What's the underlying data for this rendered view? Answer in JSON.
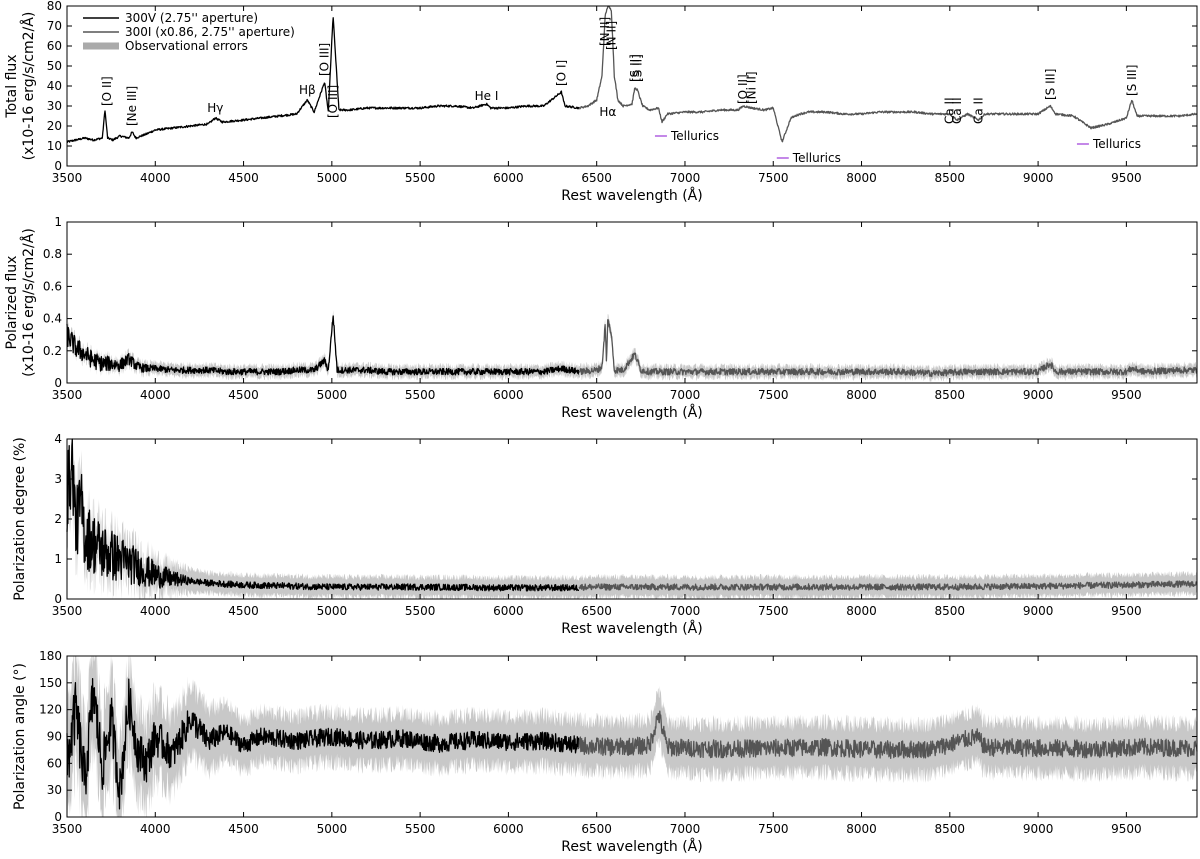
{
  "chart_data": [
    {
      "type": "line",
      "id": "total",
      "ylabel_line1": "Total flux",
      "ylabel_line2": "(x10-16 erg/s/cm2/Å)",
      "xlabel": "Rest wavelength (Å)",
      "xlim": [
        3500,
        9900
      ],
      "ylim": [
        0,
        80
      ],
      "x_ticks": [
        3500,
        4000,
        4500,
        5000,
        5500,
        6000,
        6500,
        7000,
        7500,
        8000,
        8500,
        9000,
        9500
      ],
      "y_ticks": [
        0,
        10,
        20,
        30,
        40,
        50,
        60,
        70,
        80
      ],
      "legend": [
        {
          "label": "300V (2.75'' aperture)",
          "color": "#000000"
        },
        {
          "label": "300I (x0.86, 2.75'' aperture)",
          "color": "#555555"
        },
        {
          "label": "Observational errors",
          "color": "#aaaaaa"
        }
      ],
      "series": [
        {
          "name": "300V (2.75'' aperture)",
          "color": "#000000",
          "x": [
            3500,
            3550,
            3600,
            3650,
            3700,
            3715,
            3730,
            3760,
            3800,
            3850,
            3869,
            3890,
            3950,
            4000,
            4100,
            4200,
            4300,
            4340,
            4380,
            4500,
            4600,
            4700,
            4800,
            4861,
            4900,
            4959,
            4980,
            5007,
            5040,
            5100,
            5200,
            5300,
            5400,
            5500,
            5600,
            5700,
            5800,
            5876,
            5900,
            6000,
            6100,
            6200,
            6300,
            6320,
            6400
          ],
          "y": [
            12,
            13,
            14,
            13,
            14,
            28,
            14,
            13,
            15,
            14,
            17,
            14,
            16,
            18,
            19,
            20,
            21,
            24,
            22,
            23,
            24,
            25,
            26,
            33,
            27,
            42,
            27,
            75,
            28,
            28,
            29,
            29,
            29,
            29,
            30,
            30,
            29,
            31,
            29,
            29,
            30,
            30,
            37,
            30,
            29
          ]
        },
        {
          "name": "300I (x0.86, 2.75'' aperture)",
          "color": "#555555",
          "x": [
            6400,
            6450,
            6500,
            6530,
            6548,
            6563,
            6583,
            6600,
            6620,
            6650,
            6700,
            6716,
            6731,
            6760,
            6800,
            6850,
            6870,
            6900,
            7000,
            7100,
            7200,
            7300,
            7330,
            7380,
            7450,
            7500,
            7550,
            7600,
            7650,
            7700,
            7800,
            7900,
            8000,
            8100,
            8200,
            8300,
            8400,
            8500,
            8542,
            8600,
            8662,
            8700,
            8800,
            8900,
            9000,
            9069,
            9100,
            9200,
            9300,
            9400,
            9500,
            9531,
            9560,
            9600,
            9700,
            9800,
            9900
          ],
          "y": [
            29,
            30,
            33,
            45,
            75,
            80,
            78,
            45,
            33,
            30,
            31,
            39,
            38,
            30,
            28,
            29,
            22,
            26,
            27,
            27,
            28,
            28,
            30,
            29,
            28,
            29,
            12,
            24,
            26,
            27,
            27,
            26,
            26,
            27,
            27,
            27,
            26,
            26,
            23,
            26,
            23,
            26,
            26,
            26,
            26,
            30,
            26,
            25,
            19,
            21,
            24,
            33,
            25,
            25,
            25,
            25,
            26
          ]
        }
      ],
      "annotations": [
        {
          "text": "[O II]",
          "x": 3727,
          "y": 30,
          "rotate": -90,
          "color": "#000000"
        },
        {
          "text": "[Ne III]",
          "x": 3869,
          "y": 20,
          "rotate": -90,
          "color": "#000000"
        },
        {
          "text": "Hγ",
          "x": 4340,
          "y": 27,
          "rotate": 0,
          "color": "#000000"
        },
        {
          "text": "Hβ",
          "x": 4861,
          "y": 36,
          "rotate": 0,
          "color": "#000000"
        },
        {
          "text": "[O III]",
          "x": 4959,
          "y": 45,
          "rotate": -90,
          "color": "#000000"
        },
        {
          "text": "[O III]",
          "x": 5007,
          "y": 24,
          "rotate": -90,
          "color": "#000000"
        },
        {
          "text": "He I",
          "x": 5876,
          "y": 33,
          "rotate": 0,
          "color": "#000000"
        },
        {
          "text": "[O I]",
          "x": 6300,
          "y": 40,
          "rotate": -90,
          "color": "#000000"
        },
        {
          "text": "[N II]",
          "x": 6548,
          "y": 60,
          "rotate": -90,
          "color": "#000000"
        },
        {
          "text": "Hα",
          "x": 6563,
          "y": 25,
          "rotate": 0,
          "color": "#000000"
        },
        {
          "text": "[N II]",
          "x": 6583,
          "y": 58,
          "rotate": -90,
          "color": "#000000"
        },
        {
          "text": "[S II]",
          "x": 6716,
          "y": 42,
          "rotate": -90,
          "color": "#000000"
        },
        {
          "text": "[S II]",
          "x": 6731,
          "y": 42,
          "rotate": -90,
          "color": "#000000"
        },
        {
          "text": "[O II]",
          "x": 7330,
          "y": 31,
          "rotate": -90,
          "color": "#000000"
        },
        {
          "text": "[Ni II]",
          "x": 7378,
          "y": 31,
          "rotate": -90,
          "color": "#000000"
        },
        {
          "text": "[S III]",
          "x": 9069,
          "y": 33,
          "rotate": -90,
          "color": "#000000"
        },
        {
          "text": "[S III]",
          "x": 9531,
          "y": 35,
          "rotate": -90,
          "color": "#000000"
        },
        {
          "text": "Ca II",
          "x": 8498,
          "y": 21,
          "rotate": -90,
          "color": "#dd0000"
        },
        {
          "text": "Ca II",
          "x": 8542,
          "y": 21,
          "rotate": -90,
          "color": "#dd0000"
        },
        {
          "text": "Ca II",
          "x": 8662,
          "y": 21,
          "rotate": -90,
          "color": "#dd0000"
        }
      ],
      "tellurics": [
        {
          "text": "Tellurics",
          "x1": 6830,
          "x2": 6900,
          "y": 15
        },
        {
          "text": "Tellurics",
          "x1": 7520,
          "x2": 7660,
          "y": 4
        },
        {
          "text": "Tellurics",
          "x1": 9220,
          "x2": 9440,
          "y": 11
        }
      ]
    },
    {
      "type": "line",
      "id": "polflux",
      "ylabel_line1": "Polarized flux",
      "ylabel_line2": "(x10-16 erg/s/cm2/Å)",
      "xlabel": "Rest wavelength (Å)",
      "xlim": [
        3500,
        9900
      ],
      "ylim": [
        0,
        1
      ],
      "x_ticks": [
        3500,
        4000,
        4500,
        5000,
        5500,
        6000,
        6500,
        7000,
        7500,
        8000,
        8500,
        9000,
        9500
      ],
      "y_ticks": [
        0,
        0.2,
        0.4,
        0.6,
        0.8,
        1
      ],
      "series": [
        {
          "name": "300V (2.75'' aperture)",
          "color": "#000000",
          "x": [
            3500,
            3550,
            3600,
            3650,
            3700,
            3750,
            3800,
            3850,
            3900,
            3950,
            4000,
            4100,
            4200,
            4300,
            4400,
            4500,
            4600,
            4700,
            4800,
            4900,
            4959,
            4980,
            5007,
            5030,
            5100,
            5200,
            5300,
            5400,
            5500,
            5600,
            5700,
            5800,
            5900,
            6000,
            6100,
            6200,
            6300,
            6400
          ],
          "y": [
            0.3,
            0.22,
            0.18,
            0.14,
            0.12,
            0.12,
            0.11,
            0.15,
            0.1,
            0.09,
            0.09,
            0.08,
            0.08,
            0.08,
            0.07,
            0.07,
            0.07,
            0.07,
            0.08,
            0.08,
            0.14,
            0.08,
            0.42,
            0.08,
            0.08,
            0.08,
            0.07,
            0.07,
            0.07,
            0.07,
            0.07,
            0.07,
            0.07,
            0.07,
            0.07,
            0.07,
            0.09,
            0.07
          ]
        },
        {
          "name": "300I (x0.86, 2.75'' aperture)",
          "color": "#555555",
          "x": [
            6400,
            6500,
            6530,
            6548,
            6556,
            6563,
            6583,
            6600,
            6650,
            6716,
            6750,
            6800,
            7000,
            7200,
            7400,
            7600,
            7800,
            8000,
            8200,
            8400,
            8600,
            8800,
            9000,
            9069,
            9100,
            9300,
            9500,
            9531,
            9600,
            9800,
            9900
          ],
          "y": [
            0.07,
            0.08,
            0.1,
            0.36,
            0.12,
            0.4,
            0.3,
            0.08,
            0.08,
            0.18,
            0.08,
            0.07,
            0.07,
            0.07,
            0.07,
            0.07,
            0.07,
            0.07,
            0.07,
            0.06,
            0.07,
            0.07,
            0.07,
            0.12,
            0.07,
            0.07,
            0.07,
            0.09,
            0.07,
            0.08,
            0.08
          ]
        }
      ]
    },
    {
      "type": "line",
      "id": "poldeg",
      "ylabel_line1": "Polarization degree (%)",
      "xlabel": "Rest wavelength (Å)",
      "xlim": [
        3500,
        9900
      ],
      "ylim": [
        0,
        4
      ],
      "x_ticks": [
        3500,
        4000,
        4500,
        5000,
        5500,
        6000,
        6500,
        7000,
        7500,
        8000,
        8500,
        9000,
        9500
      ],
      "y_ticks": [
        0,
        1,
        2,
        3,
        4
      ],
      "series": [
        {
          "name": "300V (2.75'' aperture)",
          "color": "#000000",
          "x": [
            3500,
            3530,
            3550,
            3580,
            3600,
            3650,
            3700,
            3750,
            3800,
            3850,
            3900,
            3950,
            4000,
            4100,
            4200,
            4300,
            4500,
            4700,
            5000,
            5500,
            6000,
            6400
          ],
          "y": [
            2.6,
            3.4,
            1.8,
            2.4,
            1.6,
            1.4,
            1.2,
            1.1,
            1.0,
            0.9,
            0.8,
            0.7,
            0.6,
            0.5,
            0.45,
            0.4,
            0.35,
            0.33,
            0.3,
            0.3,
            0.28,
            0.28
          ]
        },
        {
          "name": "300I (x0.86, 2.75'' aperture)",
          "color": "#555555",
          "x": [
            6400,
            7000,
            7500,
            8000,
            8500,
            9000,
            9500,
            9900
          ],
          "y": [
            0.3,
            0.3,
            0.3,
            0.3,
            0.3,
            0.32,
            0.35,
            0.38
          ]
        }
      ]
    },
    {
      "type": "line",
      "id": "polangle",
      "ylabel_line1": "Polarization angle (°)",
      "xlabel": "Rest wavelength (Å)",
      "xlim": [
        3500,
        9900
      ],
      "ylim": [
        0,
        180
      ],
      "x_ticks": [
        3500,
        4000,
        4500,
        5000,
        5500,
        6000,
        6500,
        7000,
        7500,
        8000,
        8500,
        9000,
        9500
      ],
      "y_ticks": [
        0,
        30,
        60,
        90,
        120,
        150,
        180
      ],
      "series": [
        {
          "name": "300V (2.75'' aperture)",
          "color": "#000000",
          "x": [
            3500,
            3550,
            3600,
            3650,
            3700,
            3750,
            3800,
            3850,
            3900,
            3950,
            4000,
            4100,
            4200,
            4300,
            4400,
            4500,
            4600,
            4800,
            5000,
            5200,
            5400,
            5600,
            5800,
            6000,
            6200,
            6400
          ],
          "y": [
            60,
            120,
            40,
            140,
            55,
            110,
            30,
            130,
            75,
            60,
            90,
            70,
            110,
            85,
            95,
            80,
            90,
            85,
            90,
            85,
            88,
            82,
            86,
            84,
            85,
            80
          ]
        },
        {
          "name": "300I (x0.86, 2.75'' aperture)",
          "color": "#555555",
          "x": [
            6400,
            6600,
            6800,
            6850,
            6900,
            7200,
            7500,
            7800,
            8100,
            8400,
            8650,
            8700,
            9000,
            9300,
            9600,
            9900
          ],
          "y": [
            80,
            78,
            80,
            115,
            78,
            76,
            77,
            78,
            75,
            76,
            90,
            78,
            77,
            76,
            78,
            77
          ]
        }
      ]
    }
  ]
}
